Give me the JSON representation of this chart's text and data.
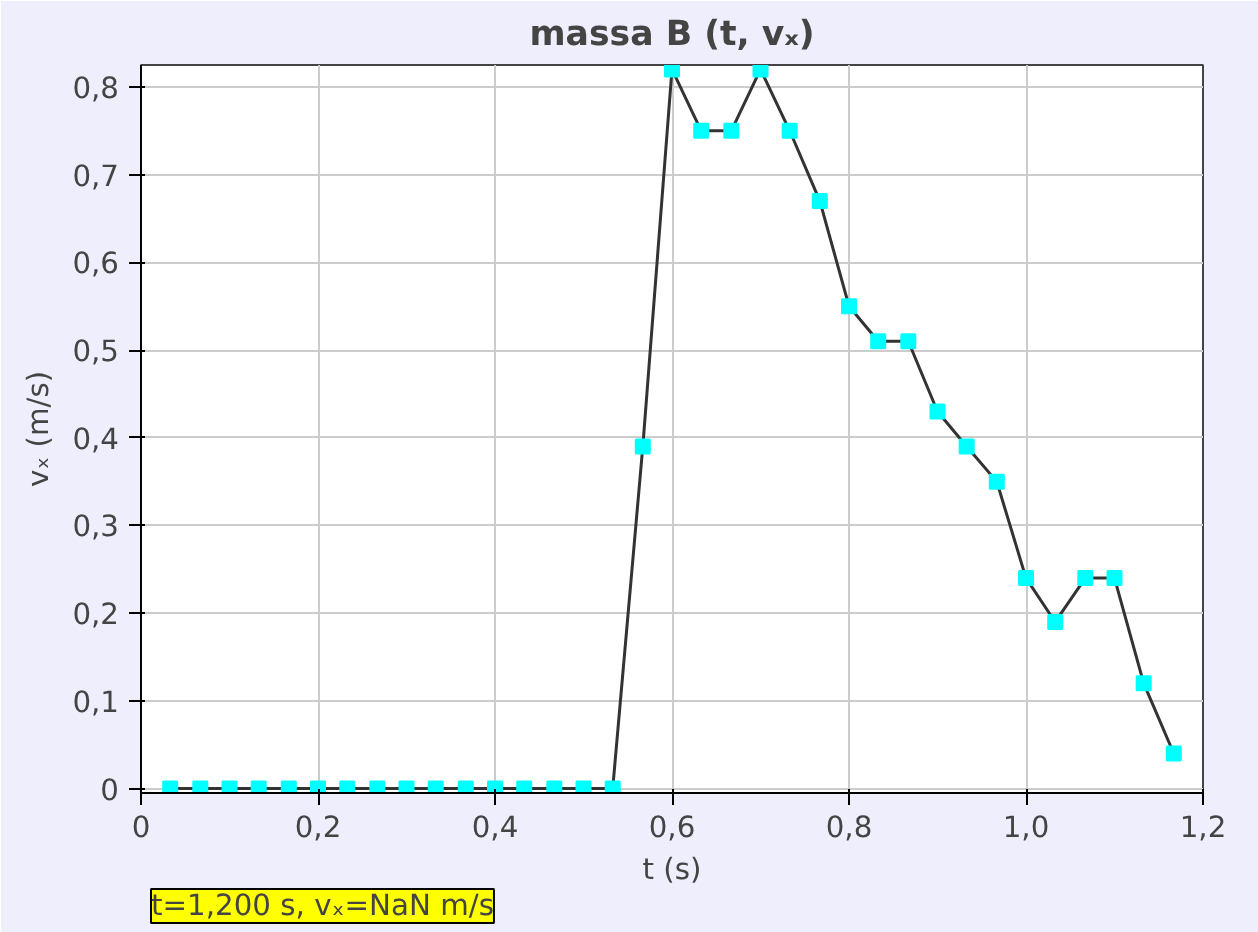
{
  "chart_data": {
    "type": "line",
    "title": "massa B (t, vₓ)",
    "xlabel": "t (s)",
    "ylabel": "vₓ (m/s)",
    "x": [
      0.033,
      0.067,
      0.1,
      0.133,
      0.167,
      0.2,
      0.233,
      0.267,
      0.3,
      0.333,
      0.367,
      0.4,
      0.433,
      0.467,
      0.5,
      0.533,
      0.567,
      0.6,
      0.633,
      0.667,
      0.7,
      0.733,
      0.767,
      0.8,
      0.833,
      0.867,
      0.9,
      0.933,
      0.967,
      1.0,
      1.033,
      1.067,
      1.1,
      1.133,
      1.167
    ],
    "series": [
      {
        "color": "#333333",
        "values": [
          0,
          0,
          0,
          0,
          0,
          0,
          0,
          0,
          0,
          0,
          0,
          0,
          0,
          0,
          0,
          0,
          0.39,
          0.82,
          0.75,
          0.75,
          0.82,
          0.75,
          0.67,
          0.55,
          0.51,
          0.51,
          0.43,
          0.39,
          0.35,
          0.24,
          0.19,
          0.24,
          0.24,
          0.12,
          0.04
        ]
      }
    ],
    "marker": "square",
    "line_style": "solid",
    "grid": true,
    "xlim": [
      0,
      1.2
    ],
    "ylim": [
      -0.005,
      0.825
    ],
    "xticks": [
      0,
      {
        "value": 0.2,
        "label": "0,2"
      },
      {
        "value": 0.4,
        "label": "0,4"
      },
      {
        "value": 0.6,
        "label": "0,6"
      },
      {
        "value": 0.8,
        "label": "0,8"
      },
      {
        "value": 1.0,
        "label": "1,0"
      },
      {
        "value": 1.2,
        "label": "1,2"
      }
    ],
    "yticks": [
      0,
      {
        "value": 0.1,
        "label": "0,1"
      },
      {
        "value": 0.2,
        "label": "0,2"
      },
      {
        "value": 0.3,
        "label": "0,3"
      },
      {
        "value": 0.4,
        "label": "0,4"
      },
      {
        "value": 0.5,
        "label": "0,5"
      },
      {
        "value": 0.6,
        "label": "0,6"
      },
      {
        "value": 0.7,
        "label": "0,7"
      },
      {
        "value": 0.8,
        "label": "0,8"
      }
    ],
    "annotations": [
      "t=1,200 s, vₓ=NaN m/s"
    ]
  }
}
